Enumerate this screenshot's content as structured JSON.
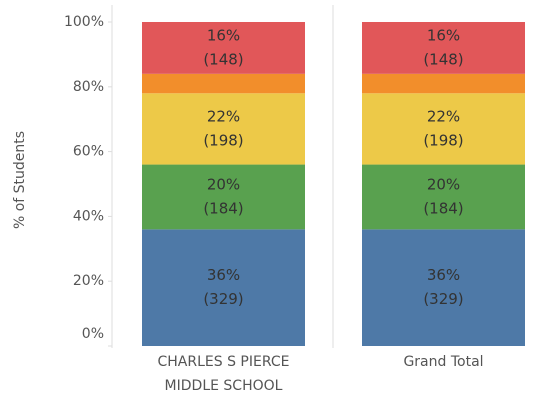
{
  "chart_data": {
    "type": "stacked_bar",
    "y_label": "% of Students",
    "categories": [
      [
        "CHARLES S PIERCE",
        "MIDDLE SCHOOL"
      ],
      [
        "Grand Total"
      ]
    ],
    "series": [
      {
        "color": "#4e79a7",
        "values": [
          36,
          36
        ],
        "value_labels": [
          "36%",
          "36%"
        ],
        "count_labels": [
          "(329)",
          "(329)"
        ]
      },
      {
        "color": "#59a14f",
        "values": [
          20,
          20
        ],
        "value_labels": [
          "20%",
          "20%"
        ],
        "count_labels": [
          "(184)",
          "(184)"
        ]
      },
      {
        "color": "#edc948",
        "values": [
          22,
          22
        ],
        "value_labels": [
          "22%",
          "22%"
        ],
        "count_labels": [
          "(198)",
          "(198)"
        ]
      },
      {
        "color": "#f28e2b",
        "values": [
          6,
          6
        ]
      },
      {
        "color": "#e15759",
        "values": [
          16,
          16
        ],
        "value_labels": [
          "16%",
          "16%"
        ],
        "count_labels": [
          "(148)",
          "(148)"
        ]
      }
    ],
    "ylim": [
      0,
      100
    ],
    "yticks": [
      {
        "value": 0,
        "label": "0%"
      },
      {
        "value": 20,
        "label": "20%"
      },
      {
        "value": 40,
        "label": "40%"
      },
      {
        "value": 60,
        "label": "60%"
      },
      {
        "value": 80,
        "label": "80%"
      },
      {
        "value": 100,
        "label": "100%"
      }
    ]
  }
}
